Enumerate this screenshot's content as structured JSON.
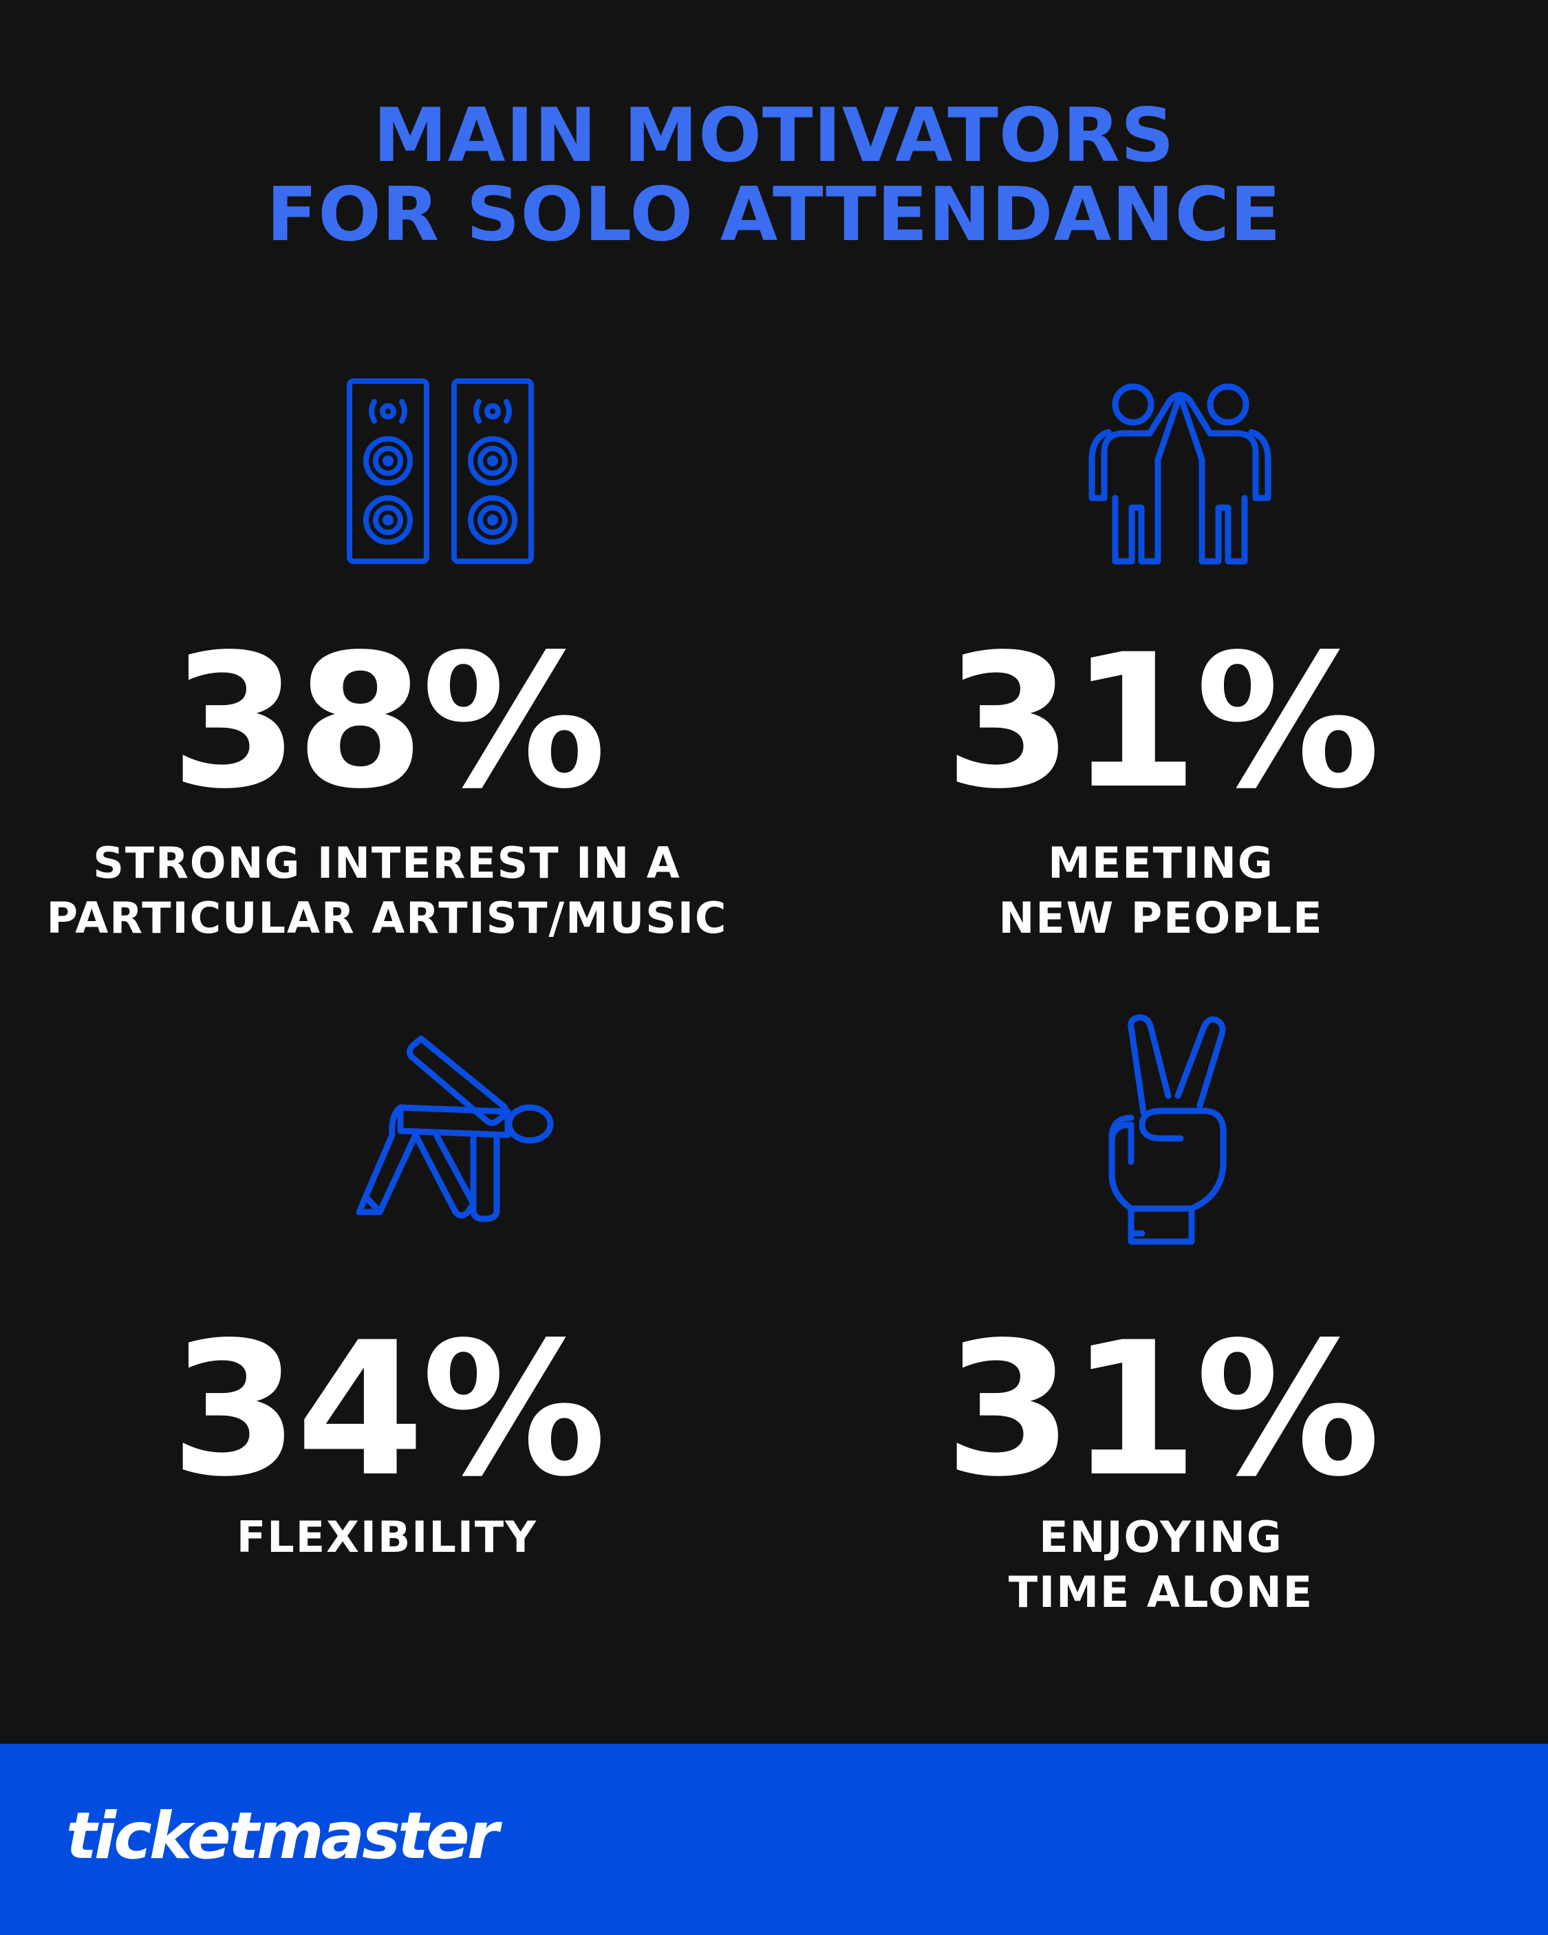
{
  "title": {
    "line1": "MAIN MOTIVATORS",
    "line2": "FOR SOLO ATTENDANCE"
  },
  "accent_color": "#3b6df0",
  "icon_color": "#0a4de0",
  "stats": [
    {
      "icon": "speakers-icon",
      "percent": "38%",
      "label_line1": "STRONG INTEREST IN A",
      "label_line2": "PARTICULAR ARTIST/MUSIC"
    },
    {
      "icon": "high-five-icon",
      "percent": "31%",
      "label_line1": "MEETING",
      "label_line2": "NEW PEOPLE"
    },
    {
      "icon": "stretching-person-icon",
      "percent": "34%",
      "label_line1": "FLEXIBILITY",
      "label_line2": ""
    },
    {
      "icon": "peace-sign-hand-icon",
      "percent": "31%",
      "label_line1": "ENJOYING",
      "label_line2": "TIME ALONE"
    }
  ],
  "footer": {
    "logo_text": "ticketmaster",
    "background": "#024ddf"
  }
}
